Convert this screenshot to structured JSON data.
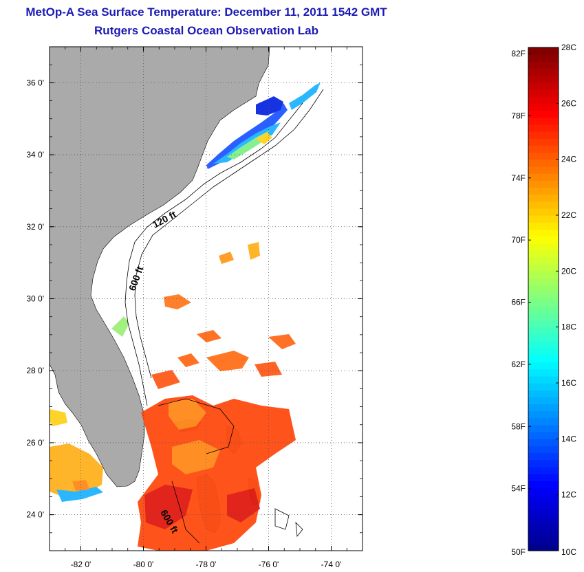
{
  "title": "MetOp-A Sea Surface Temperature:  December 11, 2011 1542 GMT",
  "subtitle": "Rutgers Coastal Ocean Observation Lab",
  "map": {
    "lon_range": [
      -83,
      -73
    ],
    "lat_range": [
      23,
      37
    ],
    "lon_ticks": [
      {
        "value": -82,
        "label": "-82 0'"
      },
      {
        "value": -80,
        "label": "-80 0'"
      },
      {
        "value": -78,
        "label": "-78 0'"
      },
      {
        "value": -76,
        "label": "-76 0'"
      },
      {
        "value": -74,
        "label": "-74 0'"
      }
    ],
    "lat_ticks": [
      {
        "value": 36,
        "label": "36 0'"
      },
      {
        "value": 34,
        "label": "34 0'"
      },
      {
        "value": 32,
        "label": "32 0'"
      },
      {
        "value": 30,
        "label": "30 0'"
      },
      {
        "value": 28,
        "label": "28 0'"
      },
      {
        "value": 26,
        "label": "26 0'"
      },
      {
        "value": 24,
        "label": "24 0'"
      }
    ],
    "grid": "dotted",
    "contour_labels": [
      "120 ft",
      "600 ft",
      "600 ft"
    ],
    "colors": {
      "land": "#aaaaaa",
      "water": "#ffffff"
    }
  },
  "colorbar": {
    "range_c": [
      10,
      28
    ],
    "celsius_labels": [
      {
        "value": 28,
        "label": "28C"
      },
      {
        "value": 26,
        "label": "26C"
      },
      {
        "value": 24,
        "label": "24C"
      },
      {
        "value": 22,
        "label": "22C"
      },
      {
        "value": 20,
        "label": "20C"
      },
      {
        "value": 18,
        "label": "18C"
      },
      {
        "value": 16,
        "label": "16C"
      },
      {
        "value": 14,
        "label": "14C"
      },
      {
        "value": 12,
        "label": "12C"
      },
      {
        "value": 10,
        "label": "10C"
      }
    ],
    "fahrenheit_labels": [
      {
        "value": 82,
        "label": "82F"
      },
      {
        "value": 78,
        "label": "78F"
      },
      {
        "value": 74,
        "label": "74F"
      },
      {
        "value": 70,
        "label": "70F"
      },
      {
        "value": 66,
        "label": "66F"
      },
      {
        "value": 62,
        "label": "62F"
      },
      {
        "value": 58,
        "label": "58F"
      },
      {
        "value": 54,
        "label": "54F"
      },
      {
        "value": 50,
        "label": "50F"
      }
    ],
    "colormap": [
      "#00008f",
      "#0000ff",
      "#0080ff",
      "#00ffff",
      "#80ff80",
      "#ffff00",
      "#ff8000",
      "#ff0000",
      "#800000"
    ]
  }
}
